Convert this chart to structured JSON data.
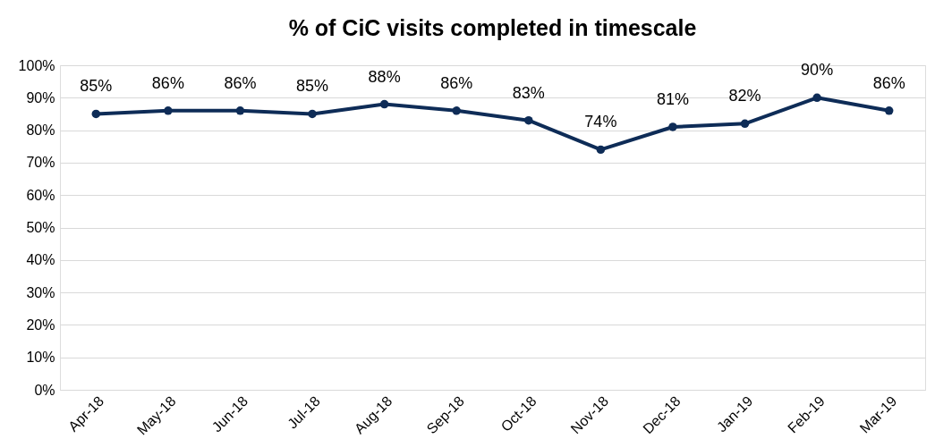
{
  "chart_data": {
    "type": "line",
    "title": "% of CiC visits completed in timescale",
    "categories": [
      "Apr-18",
      "May-18",
      "Jun-18",
      "Jul-18",
      "Aug-18",
      "Sep-18",
      "Oct-18",
      "Nov-18",
      "Dec-18",
      "Jan-19",
      "Feb-19",
      "Mar-19"
    ],
    "series": [
      {
        "color": "#0e2c57",
        "values": [
          85,
          86,
          86,
          85,
          88,
          86,
          83,
          74,
          81,
          82,
          90,
          86
        ],
        "value_labels": [
          "85%",
          "86%",
          "86%",
          "85%",
          "88%",
          "86%",
          "83%",
          "74%",
          "81%",
          "82%",
          "90%",
          "86%"
        ]
      }
    ],
    "ylim": [
      0,
      100
    ],
    "yticks": [
      {
        "value": 0,
        "label": "0%"
      },
      {
        "value": 10,
        "label": "10%"
      },
      {
        "value": 20,
        "label": "20%"
      },
      {
        "value": 30,
        "label": "30%"
      },
      {
        "value": 40,
        "label": "40%"
      },
      {
        "value": 50,
        "label": "50%"
      },
      {
        "value": 60,
        "label": "60%"
      },
      {
        "value": 70,
        "label": "70%"
      },
      {
        "value": 80,
        "label": "80%"
      },
      {
        "value": 90,
        "label": "90%"
      },
      {
        "value": 100,
        "label": "100%"
      }
    ],
    "grid": "y",
    "marker": "circle",
    "line_style": "solid"
  }
}
